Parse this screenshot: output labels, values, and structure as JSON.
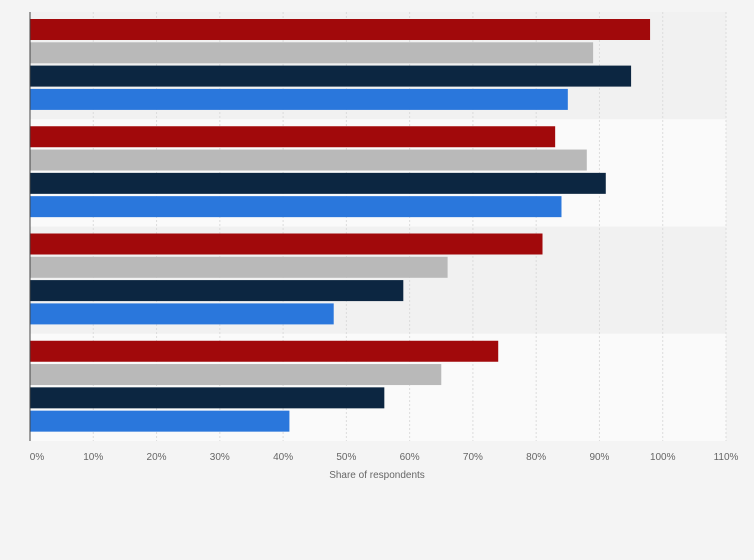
{
  "chart_data": {
    "type": "bar",
    "orientation": "horizontal",
    "categories": [
      "",
      "",
      "",
      ""
    ],
    "series": [
      {
        "color": "#a1090b",
        "values": [
          98,
          83,
          81,
          74
        ]
      },
      {
        "color": "#b9b9b9",
        "values": [
          89,
          88,
          66,
          65
        ]
      },
      {
        "color": "#0c2641",
        "values": [
          95,
          91,
          59,
          56
        ]
      },
      {
        "color": "#2a77dc",
        "values": [
          85,
          84,
          48,
          41
        ]
      }
    ],
    "xlim": [
      0,
      110
    ],
    "xticks": [
      0,
      10,
      20,
      30,
      40,
      50,
      60,
      70,
      80,
      90,
      100,
      110
    ],
    "xtick_labels": [
      "0%",
      "10%",
      "20%",
      "30%",
      "40%",
      "50%",
      "60%",
      "70%",
      "80%",
      "90%",
      "100%",
      "110%"
    ],
    "xlabel": "Share of respondents",
    "ylabel": "",
    "grid": true,
    "legend": "none"
  }
}
